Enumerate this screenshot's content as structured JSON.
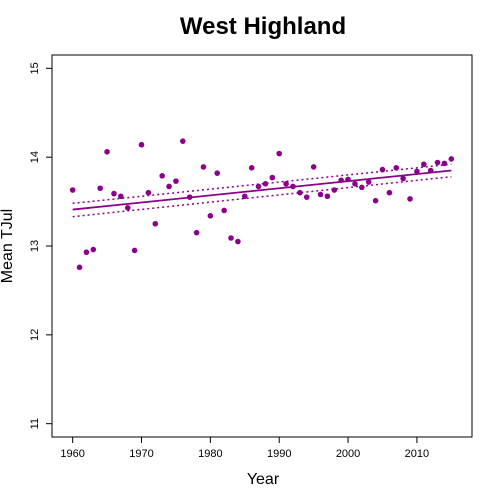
{
  "chart_data": {
    "type": "scatter",
    "title": "West Highland",
    "xlabel": "Year",
    "ylabel": "Mean TJul",
    "xlim": [
      1957,
      2018
    ],
    "ylim": [
      10.85,
      15.15
    ],
    "xticks": [
      1960,
      1970,
      1980,
      1990,
      2000,
      2010
    ],
    "yticks": [
      11,
      12,
      13,
      14,
      15
    ],
    "grid": false,
    "legend": "none",
    "colors": {
      "points": "#8b008b",
      "lines": "#8b008b"
    },
    "points": [
      {
        "x": 1960,
        "y": 13.63
      },
      {
        "x": 1961,
        "y": 12.76
      },
      {
        "x": 1962,
        "y": 12.93
      },
      {
        "x": 1963,
        "y": 12.96
      },
      {
        "x": 1964,
        "y": 13.65
      },
      {
        "x": 1965,
        "y": 14.06
      },
      {
        "x": 1966,
        "y": 13.59
      },
      {
        "x": 1967,
        "y": 13.56
      },
      {
        "x": 1968,
        "y": 13.43
      },
      {
        "x": 1969,
        "y": 12.95
      },
      {
        "x": 1970,
        "y": 14.14
      },
      {
        "x": 1971,
        "y": 13.6
      },
      {
        "x": 1972,
        "y": 13.25
      },
      {
        "x": 1973,
        "y": 13.79
      },
      {
        "x": 1974,
        "y": 13.67
      },
      {
        "x": 1975,
        "y": 13.73
      },
      {
        "x": 1976,
        "y": 14.18
      },
      {
        "x": 1977,
        "y": 13.55
      },
      {
        "x": 1978,
        "y": 13.15
      },
      {
        "x": 1979,
        "y": 13.89
      },
      {
        "x": 1980,
        "y": 13.34
      },
      {
        "x": 1981,
        "y": 13.82
      },
      {
        "x": 1982,
        "y": 13.4
      },
      {
        "x": 1983,
        "y": 13.09
      },
      {
        "x": 1984,
        "y": 13.05
      },
      {
        "x": 1985,
        "y": 13.56
      },
      {
        "x": 1986,
        "y": 13.88
      },
      {
        "x": 1987,
        "y": 13.67
      },
      {
        "x": 1988,
        "y": 13.7
      },
      {
        "x": 1989,
        "y": 13.77
      },
      {
        "x": 1990,
        "y": 14.04
      },
      {
        "x": 1991,
        "y": 13.7
      },
      {
        "x": 1992,
        "y": 13.67
      },
      {
        "x": 1993,
        "y": 13.6
      },
      {
        "x": 1994,
        "y": 13.55
      },
      {
        "x": 1995,
        "y": 13.89
      },
      {
        "x": 1996,
        "y": 13.58
      },
      {
        "x": 1997,
        "y": 13.56
      },
      {
        "x": 1998,
        "y": 13.63
      },
      {
        "x": 1999,
        "y": 13.74
      },
      {
        "x": 2000,
        "y": 13.75
      },
      {
        "x": 2001,
        "y": 13.7
      },
      {
        "x": 2002,
        "y": 13.66
      },
      {
        "x": 2003,
        "y": 13.72
      },
      {
        "x": 2004,
        "y": 13.51
      },
      {
        "x": 2005,
        "y": 13.86
      },
      {
        "x": 2006,
        "y": 13.6
      },
      {
        "x": 2007,
        "y": 13.88
      },
      {
        "x": 2008,
        "y": 13.76
      },
      {
        "x": 2009,
        "y": 13.53
      },
      {
        "x": 2010,
        "y": 13.84
      },
      {
        "x": 2011,
        "y": 13.92
      },
      {
        "x": 2012,
        "y": 13.85
      },
      {
        "x": 2013,
        "y": 13.94
      },
      {
        "x": 2014,
        "y": 13.93
      },
      {
        "x": 2015,
        "y": 13.98
      }
    ],
    "trend": {
      "x": [
        1960,
        2015
      ],
      "y": [
        13.41,
        13.85
      ]
    },
    "ci_upper": {
      "x": [
        1960,
        2015
      ],
      "y": [
        13.48,
        13.92
      ]
    },
    "ci_lower": {
      "x": [
        1960,
        2015
      ],
      "y": [
        13.33,
        13.78
      ]
    }
  }
}
